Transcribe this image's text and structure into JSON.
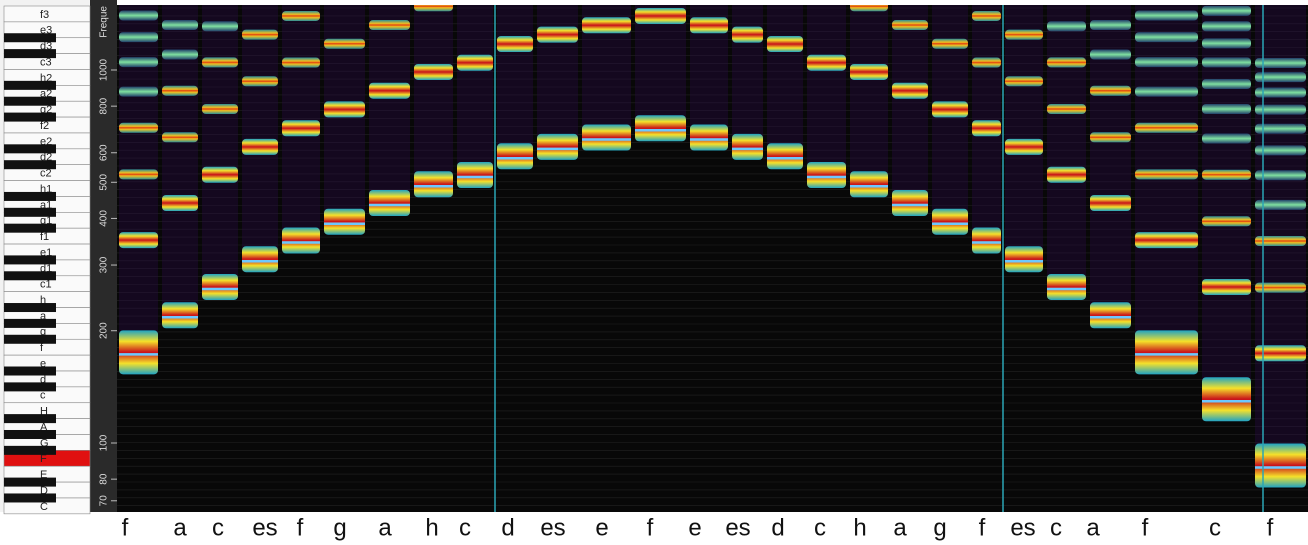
{
  "keyboard": {
    "keys": [
      "f3",
      "e3",
      "d3",
      "c3",
      "h2",
      "a2",
      "g2",
      "f2",
      "e2",
      "d2",
      "c2",
      "h1",
      "a1",
      "g1",
      "f1",
      "e1",
      "d1",
      "c1",
      "h",
      "a",
      "g",
      "f",
      "e",
      "d",
      "c",
      "H",
      "A",
      "G",
      "F",
      "E",
      "D",
      "C"
    ]
  },
  "frequency_axis": {
    "label": "Freque",
    "ticks": [
      1000,
      800,
      600,
      500,
      400,
      300,
      200,
      100,
      80,
      70
    ]
  },
  "notes": [
    "f",
    "a",
    "c",
    "es",
    "f",
    "g",
    "a",
    "h",
    "c",
    "d",
    "es",
    "e",
    "f",
    "e",
    "es",
    "d",
    "c",
    "h",
    "a",
    "g",
    "f",
    "es",
    "c",
    "a",
    "f",
    "c",
    "f"
  ]
}
